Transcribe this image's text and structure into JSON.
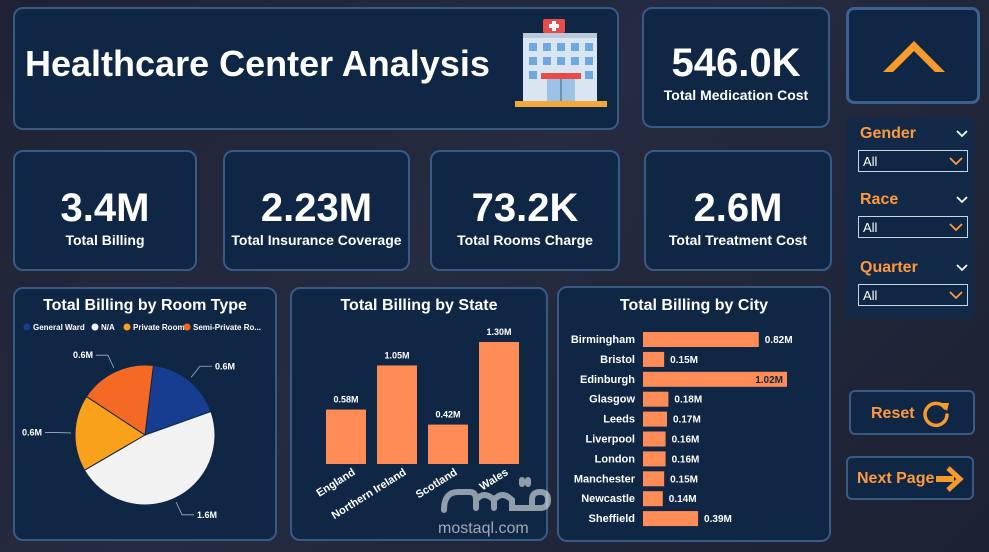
{
  "header": {
    "title": "Healthcare Center Analysis",
    "icon": "hospital-icon"
  },
  "kpis": {
    "medication": {
      "value": "546.0K",
      "label": "Total Medication Cost"
    },
    "billing": {
      "value": "3.4M",
      "label": "Total Billing"
    },
    "insurance": {
      "value": "2.23M",
      "label": "Total Insurance Coverage"
    },
    "rooms": {
      "value": "73.2K",
      "label": "Total Rooms Charge"
    },
    "treatment": {
      "value": "2.6M",
      "label": "Total Treatment Cost"
    }
  },
  "filters": [
    {
      "label": "Gender",
      "value": "All"
    },
    {
      "label": "Race",
      "value": "All"
    },
    {
      "label": "Quarter",
      "value": "All"
    }
  ],
  "buttons": {
    "reset": "Reset",
    "next": "Next Page"
  },
  "watermark": {
    "text": "mostaql.com"
  },
  "colors": {
    "bar": "#ff8c57",
    "accent": "#ff9a3c",
    "card": "#0f2744",
    "border": "#3a5a86"
  },
  "chart_data": [
    {
      "type": "pie",
      "title": "Total Billing by Room Type",
      "legend": [
        {
          "label": "General Ward",
          "color": "#163d8f"
        },
        {
          "label": "N/A",
          "color": "#f2f2f2"
        },
        {
          "label": "Private Room",
          "color": "#f9a11b"
        },
        {
          "label": "Semi-Private Ro...",
          "color": "#f46a24"
        }
      ],
      "slices": [
        {
          "label": "General Ward",
          "value": 0.6,
          "data_label": "0.6M",
          "color": "#163d8f"
        },
        {
          "label": "N/A",
          "value": 1.6,
          "data_label": "1.6M",
          "color": "#f2f2f2"
        },
        {
          "label": "Private Room",
          "value": 0.6,
          "data_label": "0.6M",
          "color": "#f9a11b"
        },
        {
          "label": "Semi-Private Room",
          "value": 0.6,
          "data_label": "0.6M",
          "color": "#f46a24"
        }
      ],
      "legend_position": "top"
    },
    {
      "type": "bar",
      "title": "Total Billing by State",
      "categories": [
        "England",
        "Northern Ireland",
        "Scotland",
        "Wales"
      ],
      "values": [
        0.58,
        1.05,
        0.42,
        1.3
      ],
      "data_labels": [
        "0.58M",
        "1.05M",
        "0.42M",
        "1.30M"
      ],
      "ylim": [
        0,
        1.3
      ]
    },
    {
      "type": "bar",
      "orientation": "horizontal",
      "title": "Total Billing by City",
      "categories": [
        "Birmingham",
        "Bristol",
        "Edinburgh",
        "Glasgow",
        "Leeds",
        "Liverpool",
        "London",
        "Manchester",
        "Newcastle",
        "Sheffield"
      ],
      "values": [
        0.82,
        0.15,
        1.02,
        0.18,
        0.17,
        0.16,
        0.16,
        0.15,
        0.14,
        0.39
      ],
      "data_labels": [
        "0.82M",
        "0.15M",
        "1.02M",
        "0.18M",
        "0.17M",
        "0.16M",
        "0.16M",
        "0.15M",
        "0.14M",
        "0.39M"
      ],
      "xlim": [
        0,
        1.02
      ]
    }
  ]
}
